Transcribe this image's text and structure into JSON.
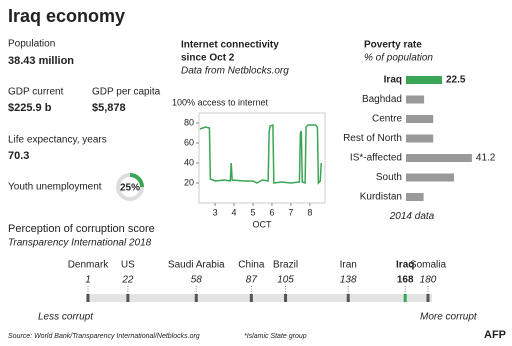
{
  "title": "Iraq economy",
  "stats": [
    {
      "label": "Population",
      "value": "38.43 million"
    },
    {
      "label": "GDP current",
      "value": "$225.9 b"
    },
    {
      "label": "GDP per capita",
      "value": "$5,878"
    },
    {
      "label": "Life expectancy, years",
      "value": "70.3"
    }
  ],
  "chart_data": [
    {
      "type": "donut",
      "title": "Youth unemployment",
      "values": [
        25
      ],
      "value_labels": [
        "25%"
      ],
      "ylim": [
        0,
        100
      ],
      "color": "#3aa655"
    },
    {
      "type": "line",
      "title": [
        "Internet connectivity",
        "since Oct 2"
      ],
      "subtitle": "Data from Netblocks.org",
      "ylabel": "100% access to internet",
      "xlabel": "OCT",
      "color": "#3aa655",
      "x": [
        2.2,
        2.35,
        2.5,
        2.7,
        2.75,
        3.0,
        3.5,
        3.8,
        3.85,
        3.9,
        4.5,
        5.0,
        5.2,
        5.5,
        5.8,
        5.85,
        5.9,
        6.05,
        6.1,
        6.5,
        7.0,
        7.45,
        7.5,
        7.55,
        7.6,
        7.75,
        7.8,
        7.9,
        8.3,
        8.4,
        8.45,
        8.55,
        8.6
      ],
      "values": [
        74,
        75,
        76,
        75,
        24,
        22,
        23,
        22,
        40,
        23,
        22,
        22,
        20,
        23,
        22,
        70,
        77,
        78,
        20,
        21,
        20,
        21,
        70,
        72,
        21,
        20,
        76,
        78,
        78,
        76,
        20,
        22,
        40
      ],
      "xlim": [
        2.15,
        8.8
      ],
      "ylim": [
        0,
        90
      ],
      "xticks": [
        3,
        4,
        5,
        6,
        7,
        8
      ],
      "yticks": [
        20,
        40,
        60,
        80
      ]
    },
    {
      "type": "hbar",
      "title": "Poverty rate",
      "subtitle": "% of population",
      "note": "2014 data",
      "categories": [
        "Iraq",
        "Baghdad",
        "Centre",
        "Rest of North",
        "IS*-affected",
        "South",
        "Kurdistan"
      ],
      "values": [
        22.5,
        11.3,
        17,
        17,
        41.2,
        30,
        11
      ],
      "value_labels": [
        "22.5",
        null,
        null,
        null,
        "41.2",
        null,
        null
      ],
      "colors": [
        "#3aa655",
        "#999999",
        "#999999",
        "#999999",
        "#999999",
        "#999999",
        "#999999"
      ],
      "xlim": [
        0,
        45
      ]
    },
    {
      "type": "strip",
      "title": "Perception of corruption score",
      "subtitle": "Transparency International 2018",
      "categories": [
        "Denmark",
        "US",
        "Saudi Arabia",
        "China",
        "Brazil",
        "Iran",
        "Iraq",
        "Somalia"
      ],
      "values": [
        1,
        22,
        58,
        87,
        105,
        138,
        168,
        180
      ],
      "colors": [
        "#555555",
        "#555555",
        "#555555",
        "#555555",
        "#555555",
        "#555555",
        "#3aa655",
        "#555555"
      ],
      "highlight": "Iraq",
      "xlim": [
        1,
        180
      ],
      "left_label": "Less corrupt",
      "right_label": "More corrupt"
    }
  ],
  "source": "Source: World Bank/Transparency International/Netblocks.org",
  "note": "*Islamic State group",
  "logo": "AFP"
}
